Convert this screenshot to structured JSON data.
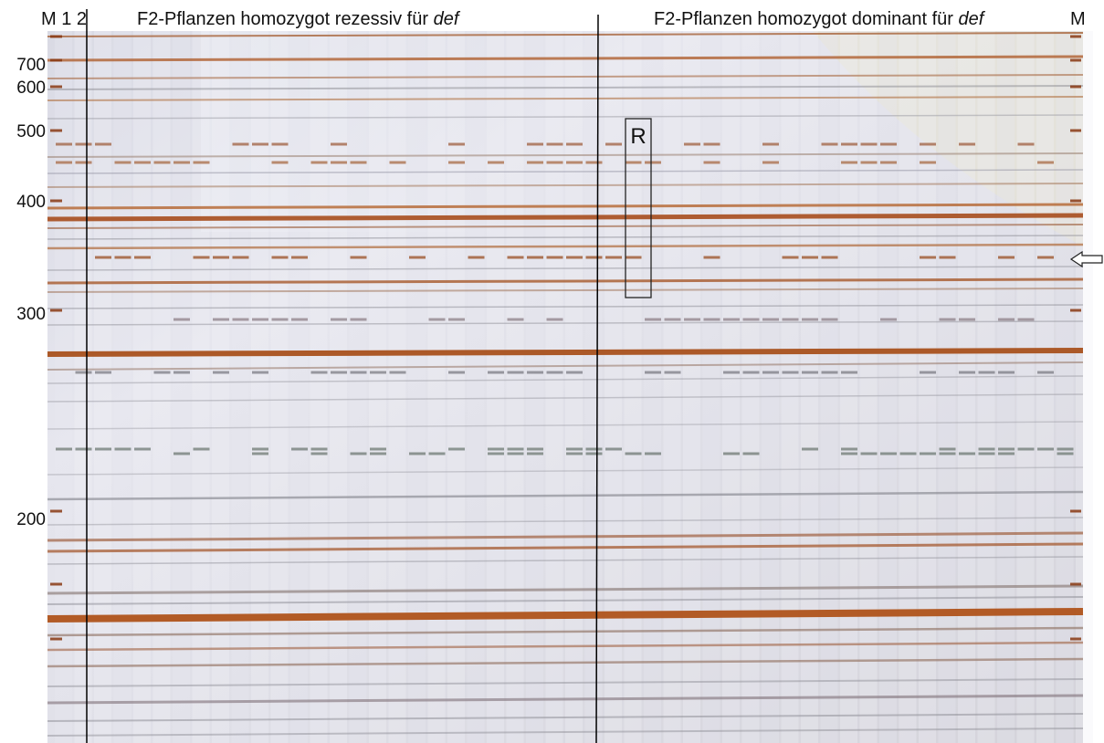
{
  "lane_labels": {
    "left": "M 1 2",
    "right": "M"
  },
  "headers": [
    {
      "text": "F2-Pflanzen homozygot rezessiv für",
      "emphasis": "def"
    },
    {
      "text": "F2-Pflanzen homozygot dominant für",
      "emphasis": "def"
    }
  ],
  "size_markers": [
    700,
    600,
    500,
    400,
    300,
    200
  ],
  "box_label": "R"
}
